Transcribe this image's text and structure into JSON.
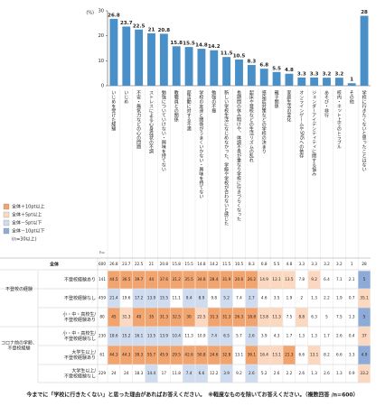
{
  "chart_data": {
    "type": "bar",
    "y_unit": "(%)",
    "categories": [
      "いじめを受けた経験",
      "いじめ",
      "不安・無気力などの心の問題",
      "ストレスによる心身症状の不調",
      "勉強についていけない・興味を持てない",
      "教職員との関係",
      "部活動に対する不満",
      "学校の友達と関係がうまくいかない・興味を持てない",
      "勉強の不振",
      "新しい学校生活になじめなかった、学級や学校が合わないと感じた",
      "長期間の休み明けや、体調不良が重なり学校に行きづらくなった",
      "起床や登校などの生活リズムの乱れ",
      "感染症対策などの学校の決まり",
      "親子関係",
      "家庭生活の変化",
      "オンラインゲームやSNSへの依存",
      "ジェンダーアイデンティティに関する悩み",
      "あそび・非行",
      "校内・ネット上でのトラブル",
      "その他",
      "学校に行きたくないと思ったことはない"
    ],
    "values": [
      26.8,
      23.7,
      22.5,
      21.0,
      20.8,
      15.8,
      15.5,
      14.8,
      14.2,
      11.5,
      10.5,
      8.3,
      6.8,
      5.5,
      4.8,
      3.3,
      3.3,
      3.2,
      3.2,
      1.0,
      28.0
    ],
    "color": "#4a90c8",
    "ylim": [
      0,
      30
    ],
    "yticks": [
      0,
      10,
      20,
      30
    ]
  },
  "legend": [
    {
      "label": "全体＋10pt以上",
      "color": "#f2a46e",
      "threshold": 10
    },
    {
      "label": "全体＋5pt以上",
      "color": "#fbd8bf",
      "threshold": 5
    },
    {
      "label": "全体－5pt以下",
      "color": "#cfdcef",
      "threshold": -5
    },
    {
      "label": "全体－10pt以下",
      "color": "#8eabd8",
      "threshold": -10
    }
  ],
  "legend_note": "(n=30以上)",
  "table": {
    "n_header": "n=",
    "rows": [
      {
        "label": [
          "全体"
        ],
        "n": 600,
        "values": [
          26.8,
          23.7,
          22.5,
          21.0,
          20.8,
          15.8,
          15.5,
          14.8,
          14.2,
          11.5,
          10.5,
          8.3,
          6.8,
          5.5,
          4.8,
          3.3,
          3.3,
          3.2,
          3.2,
          1.0,
          28.0
        ]
      },
      {
        "label": [
          "不登校経験あり"
        ],
        "n": 141,
        "values": [
          44.5,
          36.5,
          39.7,
          44.0,
          37.6,
          31.2,
          35.5,
          34.8,
          28.4,
          31.9,
          20.6,
          26.2,
          14.9,
          12.1,
          13.5,
          7.8,
          9.2,
          6.4,
          7.1,
          2.1,
          5.0
        ]
      },
      {
        "label": [
          "不登校経験なし"
        ],
        "n": 459,
        "values": [
          21.4,
          19.6,
          17.2,
          13.9,
          15.5,
          11.1,
          9.4,
          8.9,
          9.8,
          5.2,
          7.4,
          2.7,
          4.6,
          3.5,
          1.9,
          2.0,
          1.3,
          2.2,
          1.9,
          0.7,
          35.1
        ]
      },
      {
        "label": [
          "小・中・高校生/",
          "不登校経験あり"
        ],
        "n": 80,
        "values": [
          45.0,
          31.3,
          40.0,
          35.0,
          31.3,
          32.5,
          30.0,
          22.5,
          31.3,
          31.3,
          26.3,
          18.8,
          13.8,
          11.3,
          7.5,
          8.8,
          6.3,
          5.0,
          7.5,
          1.3,
          5.0
        ]
      },
      {
        "label": [
          "小・中・高校生/",
          "不登校経験なし"
        ],
        "n": 230,
        "values": [
          18.6,
          15.2,
          16.1,
          13.5,
          13.9,
          10.4,
          11.3,
          10.9,
          7.4,
          6.5,
          5.7,
          2.6,
          3.9,
          4.3,
          1.7,
          1.3,
          1.3,
          1.7,
          2.6,
          0.4,
          37.0
        ]
      },
      {
        "label": [
          "大学生以上/",
          "不登校経験あり"
        ],
        "n": 61,
        "values": [
          44.3,
          44.3,
          39.3,
          55.7,
          45.9,
          29.5,
          42.6,
          50.8,
          24.6,
          32.8,
          13.1,
          36.1,
          16.4,
          13.1,
          21.3,
          6.6,
          13.1,
          8.2,
          6.6,
          3.3,
          4.9
        ]
      },
      {
        "label": [
          "大学生以上/",
          "不登校経験なし"
        ],
        "n": 229,
        "values": [
          24.0,
          24.0,
          18.3,
          14.4,
          17.0,
          11.8,
          7.4,
          6.6,
          12.2,
          3.9,
          9.2,
          2.6,
          5.2,
          2.6,
          2.2,
          2.6,
          1.3,
          2.6,
          1.3,
          0.9,
          33.2
        ]
      }
    ],
    "groups": [
      {
        "label": "不登校の経験",
        "rows": [
          1,
          2
        ]
      },
      {
        "label": "コロナ前の学齢、不登校経験",
        "rows": [
          3,
          6
        ]
      }
    ]
  },
  "footer": "今までに「学校に行きたくない」と思った理由があればお答えください。　※軽度なものを除いてお答えください。（複数回答 /n=600）"
}
